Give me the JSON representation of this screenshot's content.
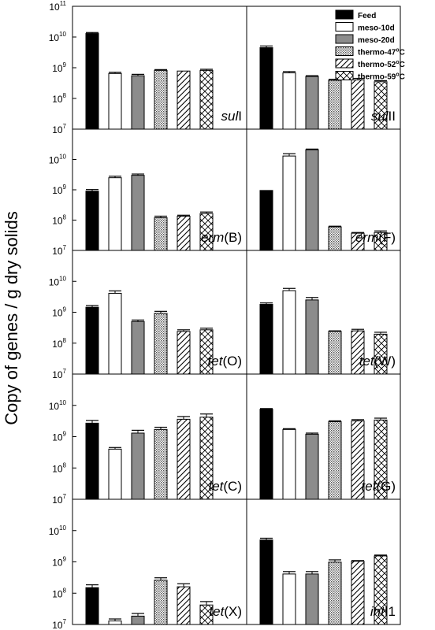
{
  "chart_data": {
    "type": "bar",
    "ylabel": "Copy of genes / g dry solids",
    "yscale": "log",
    "ylim": [
      10000000.0,
      100000000000.0
    ],
    "ytick_labels": [
      {
        "base": "10",
        "exp": "7"
      },
      {
        "base": "10",
        "exp": "8"
      },
      {
        "base": "10",
        "exp": "9"
      },
      {
        "base": "10",
        "exp": "10"
      },
      {
        "base": "10",
        "exp": "11"
      }
    ],
    "legend": {
      "placement": "top-right",
      "entries": [
        {
          "label": "Feed",
          "fill": "solid-black"
        },
        {
          "label": "meso-10d",
          "fill": "white"
        },
        {
          "label": "meso-20d",
          "fill": "gray"
        },
        {
          "label": "thermo-47",
          "sup": "o",
          "unit": "C",
          "fill": "dotted"
        },
        {
          "label": "thermo-52",
          "sup": "o",
          "unit": "C",
          "fill": "diagonal"
        },
        {
          "label": "thermo-59",
          "sup": "o",
          "unit": "C",
          "fill": "crosshatch"
        }
      ]
    },
    "series_names": [
      "Feed",
      "meso-10d",
      "meso-20d",
      "thermo-47oC",
      "thermo-52oC",
      "thermo-59oC"
    ],
    "colors": {
      "feed": "#000000",
      "meso20": "#8c8c8c",
      "axis": "#000000"
    },
    "panels": [
      {
        "gene_italic": "sul",
        "suffix": "I",
        "values": [
          13000000000.0,
          650000000.0,
          550000000.0,
          820000000.0,
          780000000.0,
          820000000.0
        ],
        "errors": [
          1000000000.0,
          60000000.0,
          60000000.0,
          50000000.0,
          0,
          70000000.0
        ]
      },
      {
        "gene_italic": "sul",
        "suffix": "II",
        "values": [
          4500000000.0,
          680000000.0,
          520000000.0,
          390000000.0,
          400000000.0,
          350000000.0
        ],
        "errors": [
          600000000.0,
          70000000.0,
          30000000.0,
          30000000.0,
          50000000.0,
          30000000.0
        ]
      },
      {
        "gene_italic": "erm",
        "suffix": "(B)",
        "values": [
          900000000.0,
          2500000000.0,
          3000000000.0,
          120000000.0,
          135000000.0,
          165000000.0
        ],
        "errors": [
          120000000.0,
          300000000.0,
          300000000.0,
          15000000.0,
          10000000.0,
          20000000.0
        ]
      },
      {
        "gene_italic": "erm",
        "suffix": "(F)",
        "values": [
          950000000.0,
          13000000000.0,
          21000000000.0,
          60000000.0,
          37000000.0,
          39000000.0
        ],
        "errors": [
          0,
          2500000000.0,
          1000000000.0,
          3000000.0,
          2000000.0,
          5000000.0
        ]
      },
      {
        "gene_italic": "tet",
        "suffix": "(O)",
        "values": [
          1450000000.0,
          4100000000.0,
          500000000.0,
          920000000.0,
          240000000.0,
          270000000.0
        ],
        "errors": [
          200000000.0,
          800000000.0,
          60000000.0,
          150000000.0,
          30000000.0,
          35000000.0
        ]
      },
      {
        "gene_italic": "tet",
        "suffix": "(W)",
        "values": [
          1800000000.0,
          5000000000.0,
          2500000000.0,
          240000000.0,
          250000000.0,
          195000000.0
        ],
        "errors": [
          200000000.0,
          900000000.0,
          500000000.0,
          10000000.0,
          30000000.0,
          30000000.0
        ]
      },
      {
        "gene_italic": "tet",
        "suffix": "(C)",
        "values": [
          2700000000.0,
          400000000.0,
          1300000000.0,
          1700000000.0,
          3600000000.0,
          4200000000.0
        ],
        "errors": [
          600000000.0,
          50000000.0,
          300000000.0,
          300000000.0,
          800000000.0,
          1100000000.0
        ]
      },
      {
        "gene_italic": "tet",
        "suffix": "(G)",
        "values": [
          7500000000.0,
          1700000000.0,
          1200000000.0,
          3000000000.0,
          3200000000.0,
          3400000000.0
        ],
        "errors": [
          400000000.0,
          100000000.0,
          100000000.0,
          200000000.0,
          300000000.0,
          500000000.0
        ]
      },
      {
        "gene_italic": "tet",
        "suffix": "(X)",
        "values": [
          150000000.0,
          13000000.0,
          18500000.0,
          260000000.0,
          160000000.0,
          42000000.0
        ],
        "errors": [
          35000000.0,
          2000000.0,
          4000000.0,
          50000000.0,
          40000000.0,
          12000000.0
        ]
      },
      {
        "gene_italic": "int",
        "suffix": "I1",
        "values": [
          5000000000.0,
          410000000.0,
          410000000.0,
          980000000.0,
          1050000000.0,
          1550000000.0
        ],
        "errors": [
          700000000.0,
          80000000.0,
          80000000.0,
          180000000.0,
          50000000.0,
          100000000.0
        ]
      }
    ]
  }
}
